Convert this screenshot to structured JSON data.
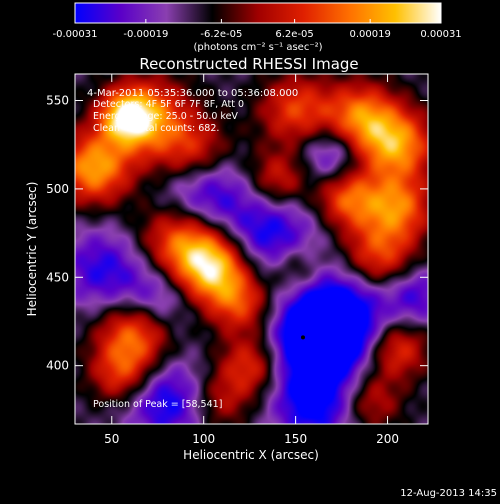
{
  "colorbar": {
    "tick_labels": [
      "-0.00031",
      "-0.00019",
      "-6.2e-05",
      "6.2e-05",
      "0.00019",
      "0.00031"
    ],
    "tick_values": [
      -0.00031,
      -0.00019,
      -6.2e-05,
      6.2e-05,
      0.00019,
      0.00031
    ],
    "range": [
      -0.00031,
      0.00031
    ],
    "units_label": "(photons cm⁻² s⁻¹ asec⁻²)",
    "colors": [
      "#0000ff",
      "#5a00c8",
      "#8a3fb0",
      "#000000",
      "#a00000",
      "#e02000",
      "#ff7000",
      "#ffc000",
      "#ffffff"
    ]
  },
  "chart_data": {
    "type": "heatmap",
    "title": "Reconstructed RHESSI Image",
    "xlabel": "Heliocentric X (arcsec)",
    "ylabel": "Heliocentric Y (arcsec)",
    "xlim": [
      30,
      222
    ],
    "ylim": [
      367,
      565
    ],
    "x_ticks": [
      50,
      100,
      150,
      200
    ],
    "y_ticks": [
      400,
      450,
      500,
      550
    ],
    "annotations": [
      "4-Mar-2011 05:35:36.000 to 05:36:08.000",
      "Detectors: 4F 5F 6F 7F 8F, Att 0",
      "Energy Range: 25.0 - 50.0 keV",
      "Clean     Total counts: 682."
    ],
    "peak_label": "Position of Peak = [58,541]",
    "marker": {
      "x": 154,
      "y": 416
    },
    "sources": [
      {
        "x": 40,
        "y": 512,
        "amp": 0.9,
        "w": 14
      },
      {
        "x": 70,
        "y": 540,
        "amp": 0.75,
        "w": 16
      },
      {
        "x": 58,
        "y": 541,
        "amp": 0.85,
        "w": 10
      },
      {
        "x": 95,
        "y": 520,
        "amp": 0.55,
        "w": 14
      },
      {
        "x": 88,
        "y": 470,
        "amp": 0.75,
        "w": 16
      },
      {
        "x": 105,
        "y": 455,
        "amp": 1.0,
        "w": 14
      },
      {
        "x": 120,
        "y": 435,
        "amp": 0.55,
        "w": 12
      },
      {
        "x": 62,
        "y": 418,
        "amp": 0.75,
        "w": 14
      },
      {
        "x": 55,
        "y": 395,
        "amp": 0.55,
        "w": 12
      },
      {
        "x": 125,
        "y": 400,
        "amp": 0.55,
        "w": 12
      },
      {
        "x": 108,
        "y": 380,
        "amp": 0.4,
        "w": 12
      },
      {
        "x": 140,
        "y": 505,
        "amp": 0.55,
        "w": 12
      },
      {
        "x": 150,
        "y": 545,
        "amp": 0.6,
        "w": 14
      },
      {
        "x": 185,
        "y": 540,
        "amp": 0.8,
        "w": 14
      },
      {
        "x": 205,
        "y": 525,
        "amp": 0.85,
        "w": 14
      },
      {
        "x": 178,
        "y": 495,
        "amp": 0.7,
        "w": 12
      },
      {
        "x": 205,
        "y": 490,
        "amp": 0.75,
        "w": 13
      },
      {
        "x": 195,
        "y": 462,
        "amp": 0.65,
        "w": 14
      },
      {
        "x": 205,
        "y": 410,
        "amp": 0.6,
        "w": 12
      },
      {
        "x": 190,
        "y": 380,
        "amp": 0.45,
        "w": 12
      },
      {
        "x": 150,
        "y": 455,
        "amp": 0.4,
        "w": 10
      },
      {
        "x": 162,
        "y": 415,
        "amp": -1.0,
        "w": 16
      },
      {
        "x": 175,
        "y": 430,
        "amp": -0.7,
        "w": 18
      },
      {
        "x": 135,
        "y": 475,
        "amp": -0.6,
        "w": 18
      },
      {
        "x": 100,
        "y": 498,
        "amp": -0.6,
        "w": 16
      },
      {
        "x": 80,
        "y": 380,
        "amp": -0.6,
        "w": 16
      },
      {
        "x": 160,
        "y": 380,
        "amp": -0.7,
        "w": 16
      },
      {
        "x": 45,
        "y": 455,
        "amp": -0.5,
        "w": 16
      },
      {
        "x": 75,
        "y": 440,
        "amp": -0.45,
        "w": 14
      },
      {
        "x": 170,
        "y": 520,
        "amp": -0.5,
        "w": 12
      },
      {
        "x": 215,
        "y": 440,
        "amp": -0.45,
        "w": 12
      }
    ]
  },
  "footer_timestamp": "12-Aug-2013 14:35"
}
